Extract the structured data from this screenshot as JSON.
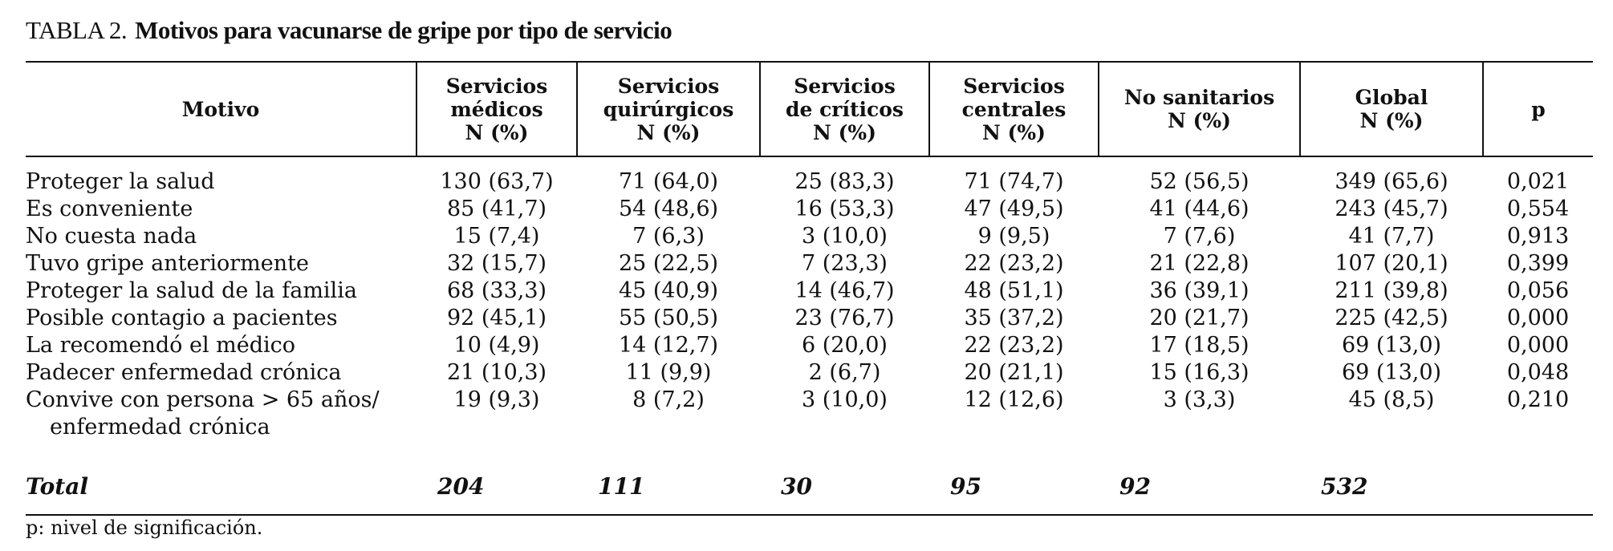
{
  "title": {
    "label": "TABLA 2.",
    "text": "Motivos para vacunarse de gripe por tipo de servicio"
  },
  "table": {
    "headers": [
      [
        "Motivo"
      ],
      [
        "Servicios",
        "médicos",
        "N (%)"
      ],
      [
        "Servicios",
        "quirúrgicos",
        "N (%)"
      ],
      [
        "Servicios",
        "de críticos",
        "N (%)"
      ],
      [
        "Servicios",
        "centrales",
        "N (%)"
      ],
      [
        "No sanitarios",
        "N (%)"
      ],
      [
        "Global",
        "N (%)"
      ],
      [
        "p"
      ]
    ],
    "rows": [
      {
        "motivo": [
          "Proteger la salud"
        ],
        "values": [
          "130 (63,7)",
          "71 (64,0)",
          "25 (83,3)",
          "71 (74,7)",
          "52 (56,5)",
          "349 (65,6)",
          "0,021"
        ]
      },
      {
        "motivo": [
          "Es conveniente"
        ],
        "values": [
          "85 (41,7)",
          "54 (48,6)",
          "16 (53,3)",
          "47 (49,5)",
          "41 (44,6)",
          "243 (45,7)",
          "0,554"
        ]
      },
      {
        "motivo": [
          "No cuesta nada"
        ],
        "values": [
          "15 (7,4)",
          "7 (6,3)",
          "3 (10,0)",
          "9 (9,5)",
          "7 (7,6)",
          "41 (7,7)",
          "0,913"
        ]
      },
      {
        "motivo": [
          "Tuvo gripe anteriormente"
        ],
        "values": [
          "32 (15,7)",
          "25 (22,5)",
          "7 (23,3)",
          "22 (23,2)",
          "21 (22,8)",
          "107 (20,1)",
          "0,399"
        ]
      },
      {
        "motivo": [
          "Proteger la salud de la familia"
        ],
        "values": [
          "68 (33,3)",
          "45 (40,9)",
          "14 (46,7)",
          "48 (51,1)",
          "36 (39,1)",
          "211 (39,8)",
          "0,056"
        ]
      },
      {
        "motivo": [
          "Posible contagio a pacientes"
        ],
        "values": [
          "92 (45,1)",
          "55 (50,5)",
          "23 (76,7)",
          "35 (37,2)",
          "20 (21,7)",
          "225 (42,5)",
          "0,000"
        ]
      },
      {
        "motivo": [
          "La recomendó el médico"
        ],
        "values": [
          "10 (4,9)",
          "14 (12,7)",
          "6 (20,0)",
          "22 (23,2)",
          "17 (18,5)",
          "69 (13,0)",
          "0,000"
        ]
      },
      {
        "motivo": [
          "Padecer enfermedad crónica"
        ],
        "values": [
          "21 (10,3)",
          "11 (9,9)",
          "2 (6,7)",
          "20 (21,1)",
          "15 (16,3)",
          "69 (13,0)",
          "0,048"
        ]
      },
      {
        "motivo": [
          "Convive con persona > 65 años/",
          "enfermedad crónica"
        ],
        "values": [
          "19 (9,3)",
          "8 (7,2)",
          "3 (10,0)",
          "12 (12,6)",
          "3 (3,3)",
          "45 (8,5)",
          "0,210"
        ]
      }
    ],
    "total": {
      "label": "Total",
      "values": [
        "204",
        "111",
        "30",
        "95",
        "92",
        "532"
      ]
    }
  },
  "footnote": "p: nivel de significación."
}
